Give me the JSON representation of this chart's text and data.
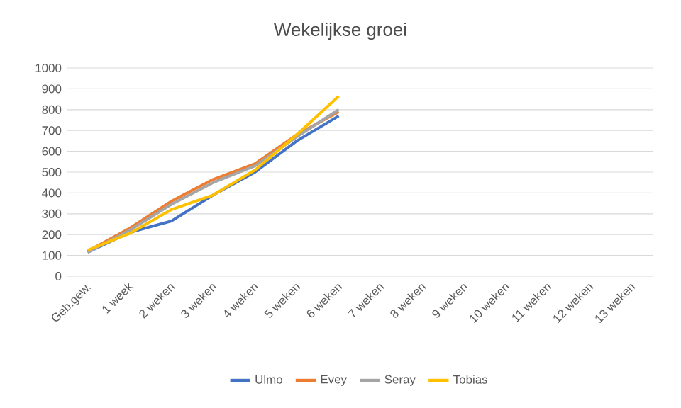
{
  "chart_data": {
    "type": "line",
    "title": "Wekelijkse groei",
    "categories": [
      "Geb.gew.",
      "1 week",
      "2 weken",
      "3 weken",
      "4 weken",
      "5 weken",
      "6 weken",
      "7 weken",
      "8 weken",
      "9 weken",
      "10 weken",
      "11 weken",
      "12 weken",
      "13 weken"
    ],
    "series": [
      {
        "name": "Ulmo",
        "color": "#4472c4",
        "values": [
          115,
          210,
          265,
          390,
          500,
          650,
          770,
          null,
          null,
          null,
          null,
          null,
          null,
          null
        ]
      },
      {
        "name": "Evey",
        "color": "#ed7d31",
        "values": [
          120,
          230,
          360,
          465,
          540,
          680,
          790,
          null,
          null,
          null,
          null,
          null,
          null,
          null
        ]
      },
      {
        "name": "Seray",
        "color": "#a5a5a5",
        "values": [
          115,
          220,
          345,
          450,
          530,
          670,
          800,
          null,
          null,
          null,
          null,
          null,
          null,
          null
        ]
      },
      {
        "name": "Tobias",
        "color": "#ffc000",
        "values": [
          125,
          205,
          320,
          390,
          510,
          680,
          865,
          null,
          null,
          null,
          null,
          null,
          null,
          null
        ]
      }
    ],
    "ylim": [
      0,
      1000
    ],
    "yticks": [
      0,
      100,
      200,
      300,
      400,
      500,
      600,
      700,
      800,
      900,
      1000
    ],
    "grid": "y",
    "legend": "bottom"
  }
}
